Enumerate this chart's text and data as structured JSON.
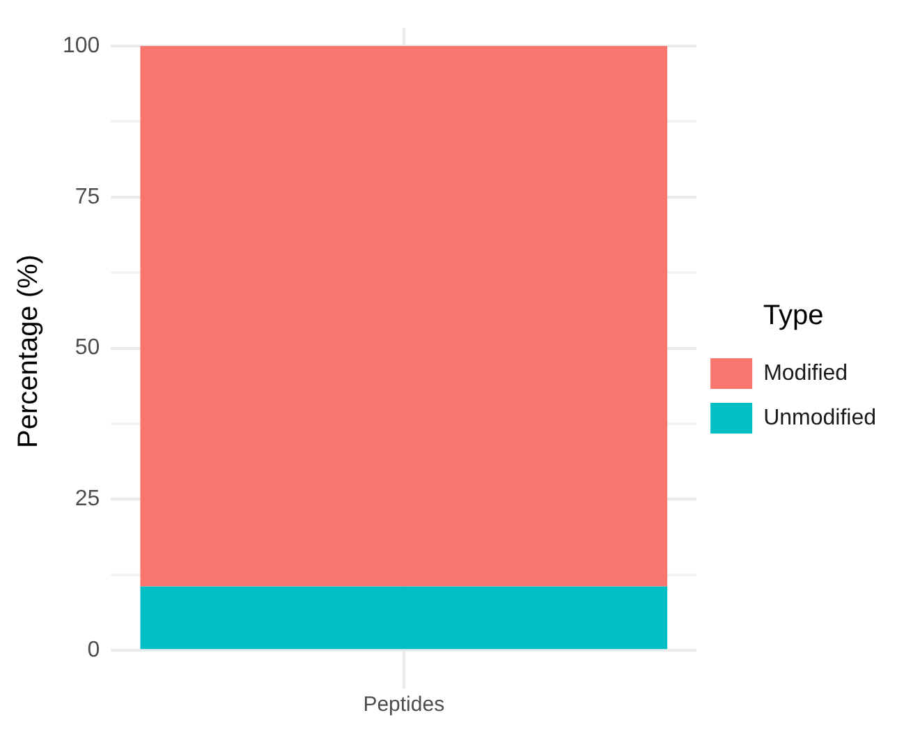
{
  "chart_data": {
    "type": "bar",
    "stacked": true,
    "ylabel": "Percentage (%)",
    "legend_title": "Type",
    "categories": [
      "Peptides"
    ],
    "series": [
      {
        "name": "Unmodified",
        "color": "#00bfc4",
        "values": [
          10.6
        ]
      },
      {
        "name": "Modified",
        "color": "#f8766d",
        "values": [
          89.4
        ]
      }
    ],
    "ylim": [
      -4,
      103
    ],
    "yticks": [
      0,
      {
        "value": 12.5,
        "label": null
      },
      25,
      {
        "value": 37.5,
        "label": null
      },
      50,
      {
        "value": 62.5,
        "label": null
      },
      75,
      {
        "value": 87.5,
        "label": null
      },
      100
    ],
    "grid": true,
    "legend": "right"
  }
}
